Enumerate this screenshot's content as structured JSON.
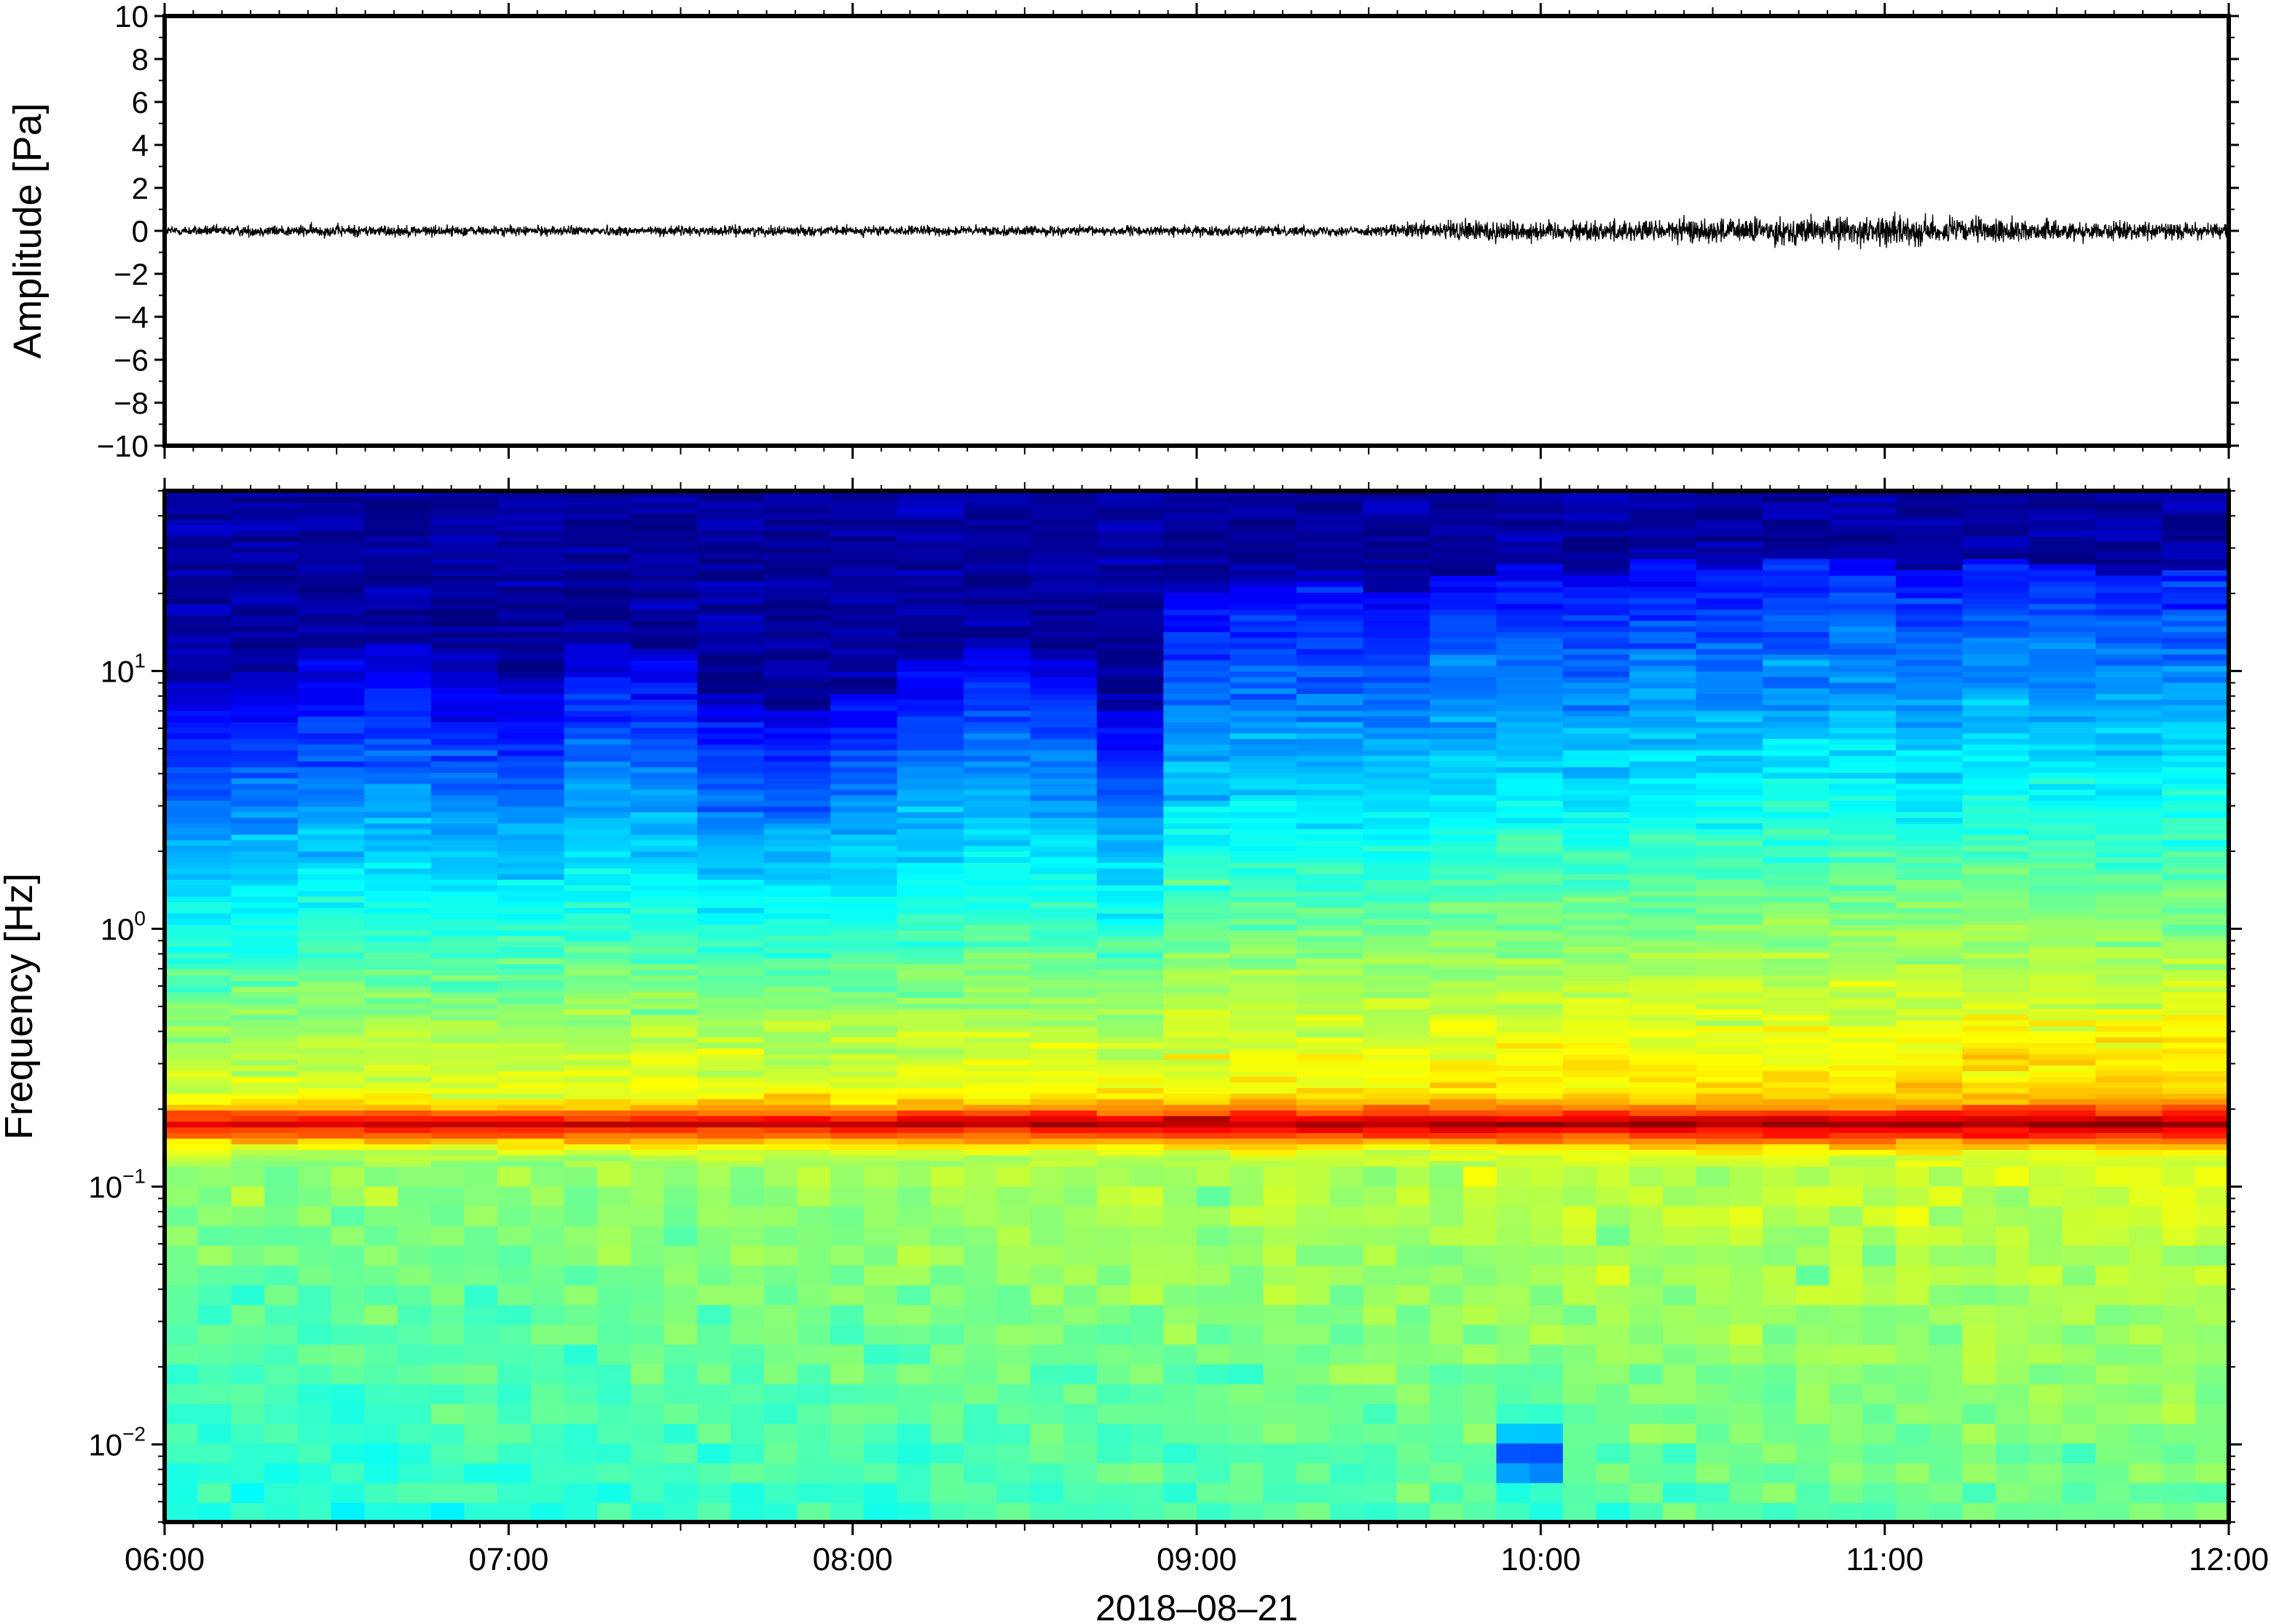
{
  "chart_data": [
    {
      "type": "line",
      "title": "",
      "xlabel": "",
      "ylabel": "Amplitude [Pa]",
      "xlim": [
        "06:00",
        "12:00"
      ],
      "ylim": [
        -10,
        10
      ],
      "yticks": [
        -10,
        -8,
        -6,
        -4,
        -2,
        0,
        2,
        4,
        6,
        8,
        10
      ],
      "ytick_labels": [
        "−10",
        "−8",
        "−6",
        "−4",
        "−2",
        "0",
        "2",
        "4",
        "6",
        "8",
        "10"
      ],
      "grid": false,
      "series": [
        {
          "color": "#000000",
          "x": [
            "06:00",
            "06:30",
            "07:00",
            "07:30",
            "08:00",
            "08:30",
            "09:00",
            "09:30",
            "09:50",
            "10:00",
            "10:30",
            "11:00",
            "11:30",
            "12:00"
          ],
          "envelope_peak_pa": [
            0.4,
            0.5,
            0.4,
            0.4,
            0.4,
            0.4,
            0.4,
            0.4,
            1.0,
            0.8,
            1.0,
            1.2,
            0.8,
            0.6
          ]
        }
      ]
    },
    {
      "type": "heatmap",
      "title": "",
      "xlabel": "2018–08–21",
      "ylabel": "Frequency [Hz]",
      "xlim": [
        "06:00",
        "12:00"
      ],
      "xticks": [
        "06:00",
        "07:00",
        "08:00",
        "09:00",
        "10:00",
        "11:00",
        "12:00"
      ],
      "y_scale": "log",
      "ylim": [
        0.005,
        50
      ],
      "yticks": [
        0.01,
        0.1,
        1,
        10
      ],
      "ytick_labels": [
        {
          "base": "10",
          "exp": "−2"
        },
        {
          "base": "10",
          "exp": "−1"
        },
        {
          "base": "10",
          "exp": "0"
        },
        {
          "base": "10",
          "exp": "1"
        }
      ],
      "colormap": "jet",
      "microbarom_peak_hz": 0.17,
      "upper_cutoff_hz": [
        9,
        10,
        12,
        13,
        10,
        9,
        13,
        12,
        8,
        7,
        8,
        11,
        13,
        11,
        7,
        20,
        22,
        22,
        20,
        24,
        26,
        24,
        27,
        26,
        28,
        27,
        25,
        28,
        26,
        24,
        25
      ],
      "low_energy_spot": {
        "time": "09:58",
        "freq_hz": 0.009
      }
    }
  ]
}
